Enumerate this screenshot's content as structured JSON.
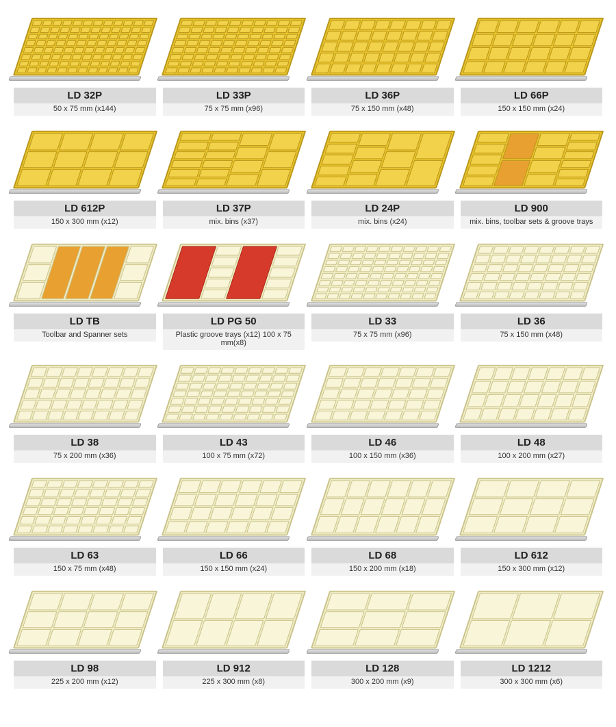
{
  "colors": {
    "bar_bg": "#dadada",
    "desc_bg": "#f1f1f1",
    "frame_border": "#a88c2c",
    "yellow_fill": "#e7c22a",
    "yellow_cell": "#f2d24a",
    "yellow_border": "#b8961c",
    "cream_fill": "#f0ecc5",
    "cream_cell": "#f8f5d8",
    "cream_border": "#c9c28a",
    "red_cell": "#d63a2a",
    "red_border": "#a82818",
    "orange_cell": "#e8a030"
  },
  "rows": [
    [
      {
        "code": "LD 32P",
        "desc": "50 x 75 mm (x144)",
        "style": "yellow",
        "grid": {
          "cols": 12,
          "rows": 8
        }
      },
      {
        "code": "LD 33P",
        "desc": "75 x 75 mm (x96)",
        "style": "yellow",
        "grid": {
          "cols": 10,
          "rows": 8
        }
      },
      {
        "code": "LD 36P",
        "desc": "75 x 150 mm (x48)",
        "style": "yellow",
        "grid": {
          "cols": 8,
          "rows": 5
        }
      },
      {
        "code": "LD 66P",
        "desc": "150 x 150 mm (x24)",
        "style": "yellow",
        "grid": {
          "cols": 6,
          "rows": 4
        }
      }
    ],
    [
      {
        "code": "LD 612P",
        "desc": "150 x 300 mm (x12)",
        "style": "yellow",
        "grid": {
          "cols": 4,
          "rows": 3
        }
      },
      {
        "code": "LD 37P",
        "desc": "mix. bins (x37)",
        "style": "yellow",
        "mixed": "mix37"
      },
      {
        "code": "LD 24P",
        "desc": "mix. bins (x24)",
        "style": "yellow",
        "mixed": "mix24"
      },
      {
        "code": "LD 900",
        "desc": "mix. bins, toolbar sets & groove trays",
        "style": "yellow",
        "mixed": "mix900"
      }
    ],
    [
      {
        "code": "LD TB",
        "desc": "Toolbar and Spanner sets",
        "style": "cream",
        "mixed": "tb"
      },
      {
        "code": "LD PG 50",
        "desc": "Plastic groove trays (x12) 100 x 75 mm(x8)",
        "style": "cream",
        "mixed": "pg50"
      },
      {
        "code": "LD 33",
        "desc": "75 x 75 mm (x96)",
        "style": "cream",
        "grid": {
          "cols": 10,
          "rows": 8
        }
      },
      {
        "code": "LD 36",
        "desc": "75 x 150 mm (x48)",
        "style": "cream",
        "grid": {
          "cols": 8,
          "rows": 6
        }
      }
    ],
    [
      {
        "code": "LD 38",
        "desc": "75 x 200 mm (x36)",
        "style": "cream",
        "grid": {
          "cols": 8,
          "rows": 5
        }
      },
      {
        "code": "LD 43",
        "desc": "100 x 75 mm (x72)",
        "style": "cream",
        "grid": {
          "cols": 9,
          "rows": 7
        }
      },
      {
        "code": "LD 46",
        "desc": "100 x 150 mm (x36)",
        "style": "cream",
        "grid": {
          "cols": 7,
          "rows": 5
        }
      },
      {
        "code": "LD 48",
        "desc": "100 x 200 mm (x27)",
        "style": "cream",
        "grid": {
          "cols": 7,
          "rows": 4
        }
      }
    ],
    [
      {
        "code": "LD 63",
        "desc": "150 x 75 mm (x48)",
        "style": "cream",
        "grid": {
          "cols": 8,
          "rows": 6
        }
      },
      {
        "code": "LD 66",
        "desc": "150 x 150 mm (x24)",
        "style": "cream",
        "grid": {
          "cols": 6,
          "rows": 4
        }
      },
      {
        "code": "LD 68",
        "desc": "150 x 200 mm (x18)",
        "style": "cream",
        "grid": {
          "cols": 6,
          "rows": 3
        }
      },
      {
        "code": "LD 612",
        "desc": "150 x 300 mm (x12)",
        "style": "cream",
        "grid": {
          "cols": 4,
          "rows": 3
        }
      }
    ],
    [
      {
        "code": "LD 98",
        "desc": "225 x 200 mm (x12)",
        "style": "cream",
        "grid": {
          "cols": 4,
          "rows": 3
        }
      },
      {
        "code": "LD 912",
        "desc": "225 x 300 mm (x8)",
        "style": "cream",
        "grid": {
          "cols": 4,
          "rows": 2
        }
      },
      {
        "code": "LD 128",
        "desc": "300 x 200 mm (x9)",
        "style": "cream",
        "grid": {
          "cols": 3,
          "rows": 3
        }
      },
      {
        "code": "LD 1212",
        "desc": "300 x 300 mm (x6)",
        "style": "cream",
        "grid": {
          "cols": 3,
          "rows": 2
        }
      }
    ]
  ]
}
